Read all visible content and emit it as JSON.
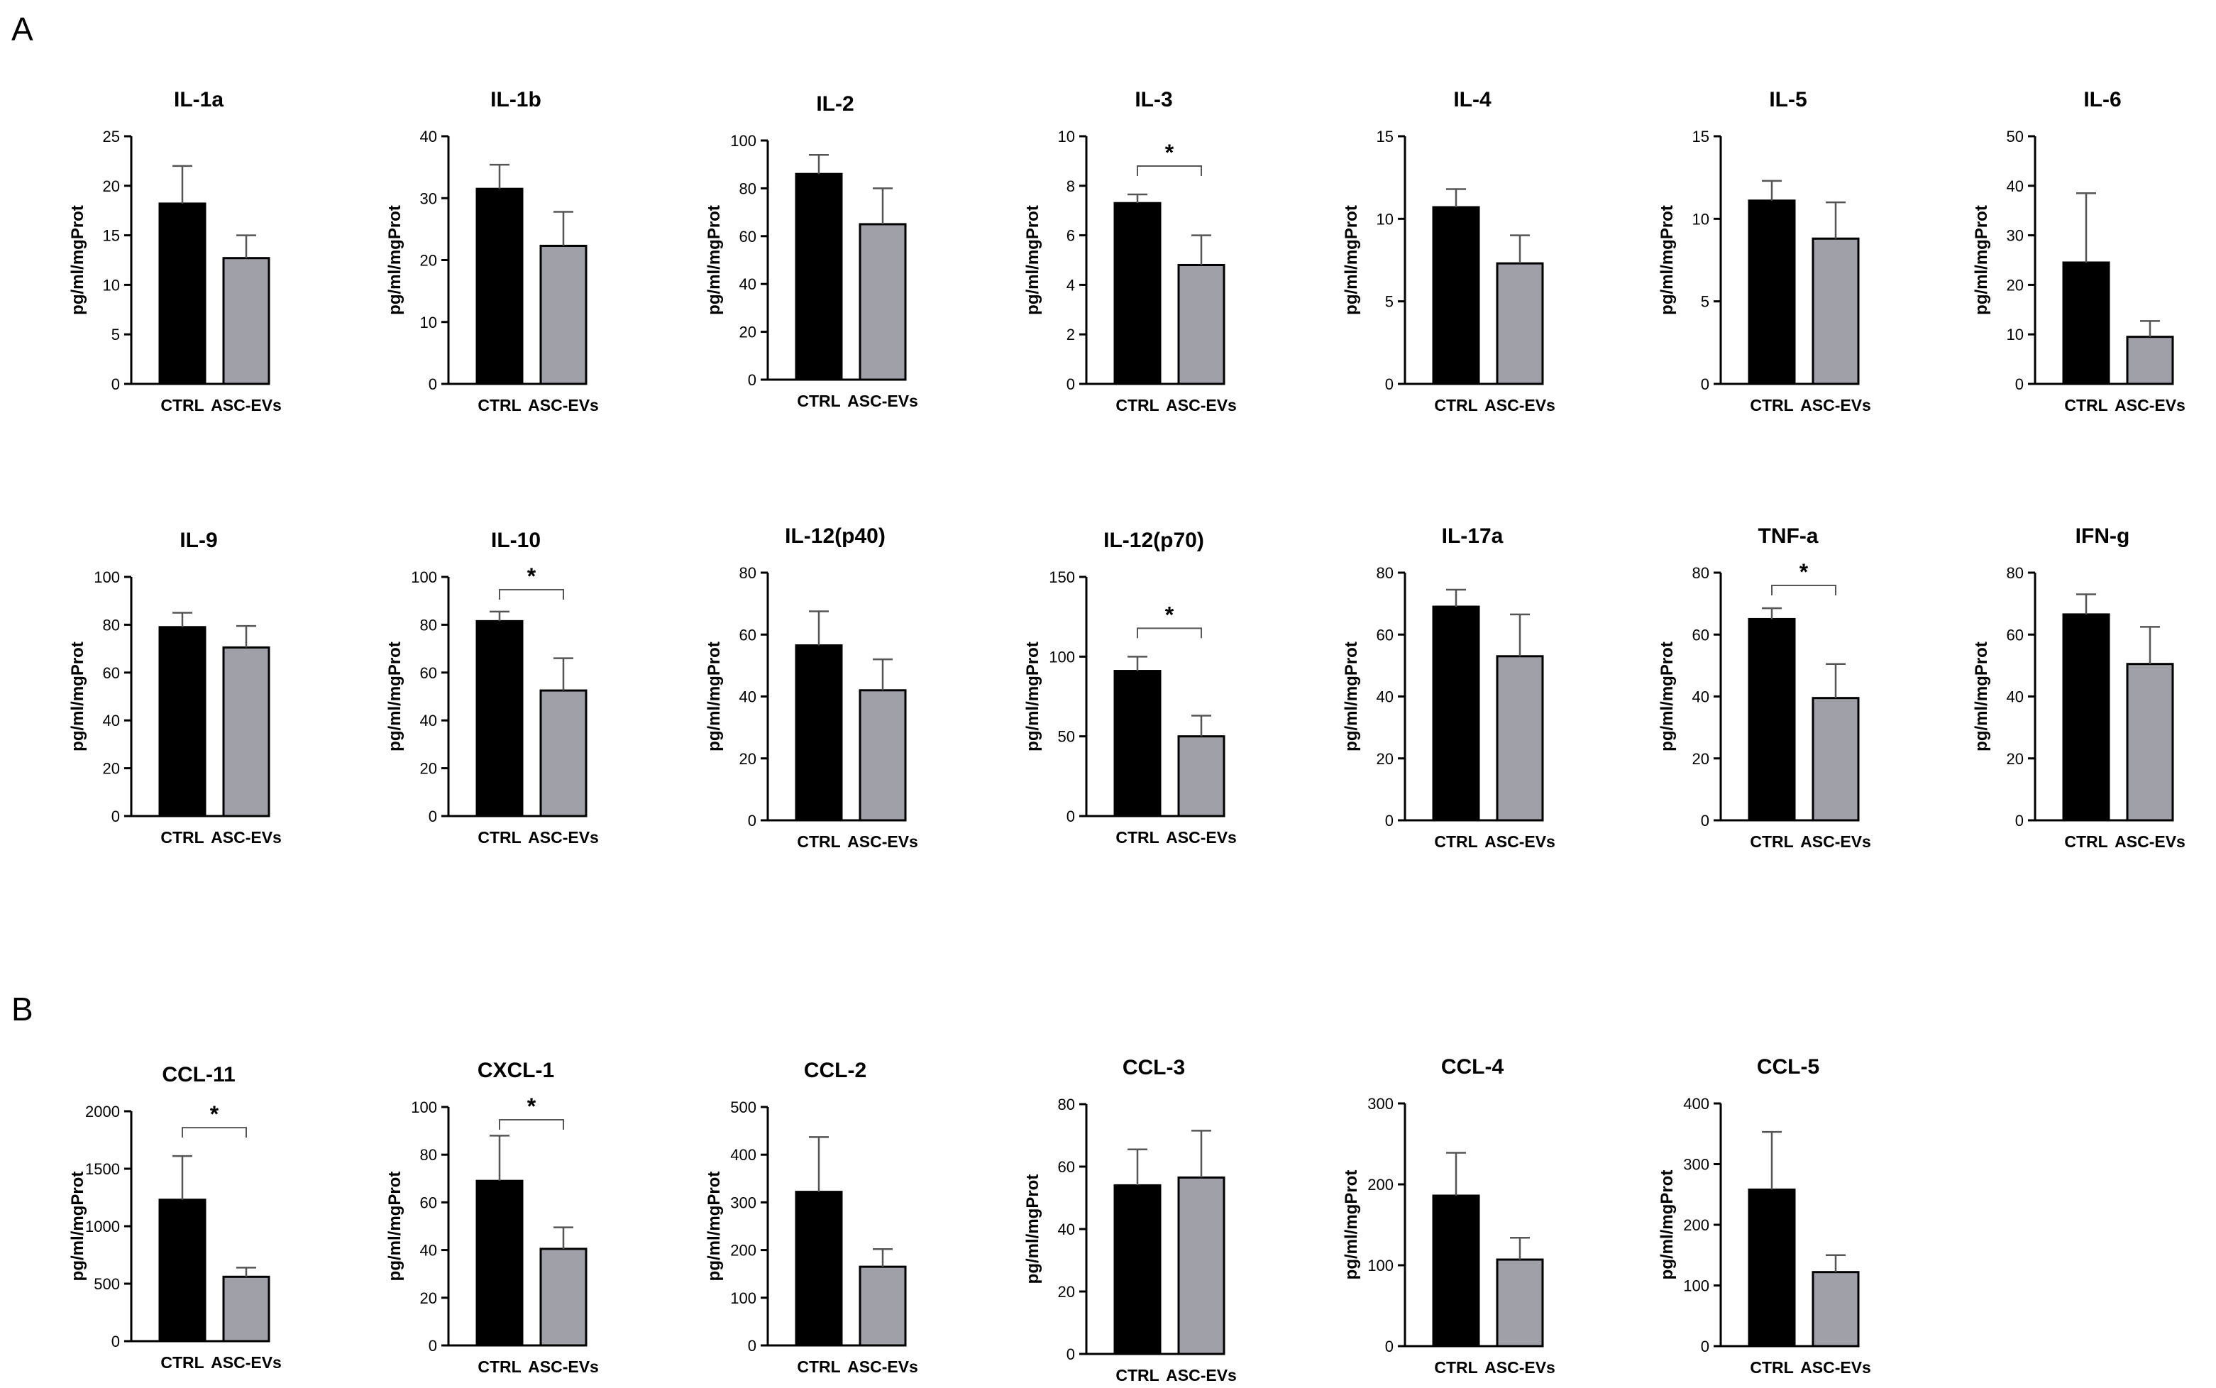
{
  "panels": {
    "a": "A",
    "b": "B"
  },
  "colors": {
    "ctrl": "#000000",
    "asc": "#a0a0a8",
    "axis": "#000000"
  },
  "chart_data": [
    {
      "type": "bar",
      "title": "IL-1a",
      "ylabel": "pg/ml/mgProt",
      "categories": [
        "CTRL",
        "ASC-EVs"
      ],
      "values": [
        18.2,
        12.7
      ],
      "errors": [
        3.8,
        2.3
      ],
      "ylim": [
        0,
        25
      ],
      "yticks": [
        0,
        5,
        10,
        15,
        20,
        25
      ],
      "significance": null
    },
    {
      "type": "bar",
      "title": "IL-1b",
      "ylabel": "pg/ml/mgProt",
      "categories": [
        "CTRL",
        "ASC-EVs"
      ],
      "values": [
        31.5,
        22.3
      ],
      "errors": [
        3.9,
        5.5
      ],
      "ylim": [
        0,
        40
      ],
      "yticks": [
        0,
        10,
        20,
        30,
        40
      ],
      "significance": null
    },
    {
      "type": "bar",
      "title": "IL-2",
      "ylabel": "pg/ml/mgProt",
      "categories": [
        "CTRL",
        "ASC-EVs"
      ],
      "values": [
        86,
        65
      ],
      "errors": [
        8,
        15
      ],
      "ylim": [
        0,
        100
      ],
      "yticks": [
        0,
        20,
        40,
        60,
        80,
        100
      ],
      "significance": null
    },
    {
      "type": "bar",
      "title": "IL-3",
      "ylabel": "pg/ml/mgProt",
      "categories": [
        "CTRL",
        "ASC-EVs"
      ],
      "values": [
        7.3,
        4.8
      ],
      "errors": [
        0.35,
        1.2
      ],
      "ylim": [
        0,
        10
      ],
      "yticks": [
        0,
        2,
        4,
        6,
        8,
        10
      ],
      "significance": "*"
    },
    {
      "type": "bar",
      "title": "IL-4",
      "ylabel": "pg/ml/mgProt",
      "categories": [
        "CTRL",
        "ASC-EVs"
      ],
      "values": [
        10.7,
        7.3
      ],
      "errors": [
        1.1,
        1.7
      ],
      "ylim": [
        0,
        15
      ],
      "yticks": [
        0,
        5,
        10,
        15
      ],
      "significance": null
    },
    {
      "type": "bar",
      "title": "IL-5",
      "ylabel": "pg/ml/mgProt",
      "categories": [
        "CTRL",
        "ASC-EVs"
      ],
      "values": [
        11.1,
        8.8
      ],
      "errors": [
        1.2,
        2.2
      ],
      "ylim": [
        0,
        15
      ],
      "yticks": [
        0,
        5,
        10,
        15
      ],
      "significance": null
    },
    {
      "type": "bar",
      "title": "IL-6",
      "ylabel": "pg/ml/mgProt",
      "categories": [
        "CTRL",
        "ASC-EVs"
      ],
      "values": [
        24.5,
        9.5
      ],
      "errors": [
        14,
        3.2
      ],
      "ylim": [
        0,
        50
      ],
      "yticks": [
        0,
        10,
        20,
        30,
        40,
        50
      ],
      "significance": null
    },
    {
      "type": "bar",
      "title": "IL-9",
      "ylabel": "pg/ml/mgProt",
      "categories": [
        "CTRL",
        "ASC-EVs"
      ],
      "values": [
        79,
        70.5
      ],
      "errors": [
        6,
        9
      ],
      "ylim": [
        0,
        100
      ],
      "yticks": [
        0,
        20,
        40,
        60,
        80,
        100
      ],
      "significance": null
    },
    {
      "type": "bar",
      "title": "IL-10",
      "ylabel": "pg/ml/mgProt",
      "categories": [
        "CTRL",
        "ASC-EVs"
      ],
      "values": [
        81.5,
        52.5
      ],
      "errors": [
        4,
        13.5
      ],
      "ylim": [
        0,
        100
      ],
      "yticks": [
        0,
        20,
        40,
        60,
        80,
        100
      ],
      "significance": "*"
    },
    {
      "type": "bar",
      "title": "IL-12(p40)",
      "ylabel": "pg/ml/mgProt",
      "categories": [
        "CTRL",
        "ASC-EVs"
      ],
      "values": [
        56.5,
        42
      ],
      "errors": [
        11,
        10
      ],
      "ylim": [
        0,
        80
      ],
      "yticks": [
        0,
        20,
        40,
        60,
        80
      ],
      "significance": null
    },
    {
      "type": "bar",
      "title": "IL-12(p70)",
      "ylabel": "pg/ml/mgProt",
      "categories": [
        "CTRL",
        "ASC-EVs"
      ],
      "values": [
        91,
        50
      ],
      "errors": [
        9,
        13
      ],
      "ylim": [
        0,
        150
      ],
      "yticks": [
        0,
        50,
        100,
        150
      ],
      "significance": "*"
    },
    {
      "type": "bar",
      "title": "IL-17a",
      "ylabel": "pg/ml/mgProt",
      "categories": [
        "CTRL",
        "ASC-EVs"
      ],
      "values": [
        69,
        53
      ],
      "errors": [
        5.5,
        13.5
      ],
      "ylim": [
        0,
        80
      ],
      "yticks": [
        0,
        20,
        40,
        60,
        80
      ],
      "significance": null
    },
    {
      "type": "bar",
      "title": "TNF-a",
      "ylabel": "pg/ml/mgProt",
      "categories": [
        "CTRL",
        "ASC-EVs"
      ],
      "values": [
        65,
        39.5
      ],
      "errors": [
        3.5,
        11
      ],
      "ylim": [
        0,
        80
      ],
      "yticks": [
        0,
        20,
        40,
        60,
        80
      ],
      "significance": "*"
    },
    {
      "type": "bar",
      "title": "IFN-g",
      "ylabel": "pg/ml/mgProt",
      "categories": [
        "CTRL",
        "ASC-EVs"
      ],
      "values": [
        66.5,
        50.5
      ],
      "errors": [
        6.5,
        12
      ],
      "ylim": [
        0,
        80
      ],
      "yticks": [
        0,
        20,
        40,
        60,
        80
      ],
      "significance": null
    },
    {
      "type": "bar",
      "title": "CCL-11",
      "ylabel": "pg/ml/mgProt",
      "categories": [
        "CTRL",
        "ASC-EVs"
      ],
      "values": [
        1230,
        560
      ],
      "errors": [
        380,
        80
      ],
      "ylim": [
        0,
        2000
      ],
      "yticks": [
        0,
        500,
        1000,
        1500,
        2000
      ],
      "significance": "*"
    },
    {
      "type": "bar",
      "title": "CXCL-1",
      "ylabel": "pg/ml/mgProt",
      "categories": [
        "CTRL",
        "ASC-EVs"
      ],
      "values": [
        69,
        40.5
      ],
      "errors": [
        19,
        9
      ],
      "ylim": [
        0,
        100
      ],
      "yticks": [
        0,
        20,
        40,
        60,
        80,
        100
      ],
      "significance": "*"
    },
    {
      "type": "bar",
      "title": "CCL-2",
      "ylabel": "pg/ml/mgProt",
      "categories": [
        "CTRL",
        "ASC-EVs"
      ],
      "values": [
        322,
        165
      ],
      "errors": [
        115,
        37
      ],
      "ylim": [
        0,
        500
      ],
      "yticks": [
        0,
        100,
        200,
        300,
        400,
        500
      ],
      "significance": null
    },
    {
      "type": "bar",
      "title": "CCL-3",
      "ylabel": "pg/ml/mgProt",
      "categories": [
        "CTRL",
        "ASC-EVs"
      ],
      "values": [
        54,
        56.5
      ],
      "errors": [
        11.5,
        15
      ],
      "ylim": [
        0,
        80
      ],
      "yticks": [
        0,
        20,
        40,
        60,
        80
      ],
      "significance": null
    },
    {
      "type": "bar",
      "title": "CCL-4",
      "ylabel": "pg/ml/mgProt",
      "categories": [
        "CTRL",
        "ASC-EVs"
      ],
      "values": [
        186,
        107
      ],
      "errors": [
        53,
        27
      ],
      "ylim": [
        0,
        300
      ],
      "yticks": [
        0,
        100,
        200,
        300
      ],
      "significance": null
    },
    {
      "type": "bar",
      "title": "CCL-5",
      "ylabel": "pg/ml/mgProt",
      "categories": [
        "CTRL",
        "ASC-EVs"
      ],
      "values": [
        258,
        122
      ],
      "errors": [
        95,
        28
      ],
      "ylim": [
        0,
        400
      ],
      "yticks": [
        0,
        100,
        200,
        300,
        400
      ],
      "significance": null
    }
  ]
}
